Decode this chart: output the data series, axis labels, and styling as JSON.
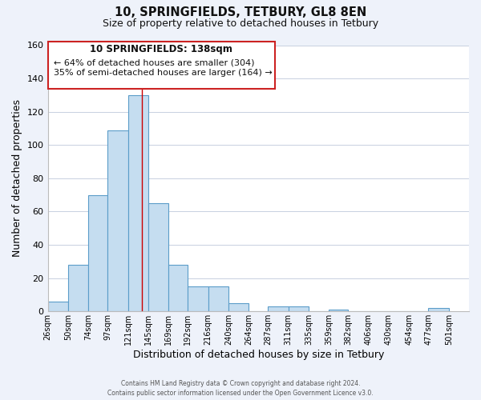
{
  "title": "10, SPRINGFIELDS, TETBURY, GL8 8EN",
  "subtitle": "Size of property relative to detached houses in Tetbury",
  "xlabel": "Distribution of detached houses by size in Tetbury",
  "ylabel": "Number of detached properties",
  "bar_left_edges": [
    26,
    50,
    74,
    97,
    121,
    145,
    169,
    192,
    216,
    240,
    264,
    287,
    311,
    335,
    359,
    382,
    406,
    430,
    454,
    477
  ],
  "bar_widths": [
    24,
    24,
    23,
    24,
    24,
    24,
    23,
    24,
    24,
    24,
    23,
    24,
    24,
    24,
    23,
    24,
    24,
    24,
    23,
    24
  ],
  "bar_heights": [
    6,
    28,
    70,
    109,
    130,
    65,
    28,
    15,
    15,
    5,
    0,
    3,
    3,
    0,
    1,
    0,
    0,
    0,
    0,
    2
  ],
  "tick_labels": [
    "26sqm",
    "50sqm",
    "74sqm",
    "97sqm",
    "121sqm",
    "145sqm",
    "169sqm",
    "192sqm",
    "216sqm",
    "240sqm",
    "264sqm",
    "287sqm",
    "311sqm",
    "335sqm",
    "359sqm",
    "382sqm",
    "406sqm",
    "430sqm",
    "454sqm",
    "477sqm",
    "501sqm"
  ],
  "tick_positions": [
    26,
    50,
    74,
    97,
    121,
    145,
    169,
    192,
    216,
    240,
    264,
    287,
    311,
    335,
    359,
    382,
    406,
    430,
    454,
    477,
    501
  ],
  "bar_color": "#c5ddf0",
  "bar_edge_color": "#5b9dc9",
  "marker_line_x": 138,
  "marker_line_color": "#cc0000",
  "ylim": [
    0,
    160
  ],
  "xlim": [
    26,
    525
  ],
  "yticks": [
    0,
    20,
    40,
    60,
    80,
    100,
    120,
    140,
    160
  ],
  "annotation_title": "10 SPRINGFIELDS: 138sqm",
  "annotation_line1": "← 64% of detached houses are smaller (304)",
  "annotation_line2": "35% of semi-detached houses are larger (164) →",
  "footer_line1": "Contains HM Land Registry data © Crown copyright and database right 2024.",
  "footer_line2": "Contains public sector information licensed under the Open Government Licence v3.0.",
  "background_color": "#eef2fa",
  "plot_bg_color": "#ffffff",
  "grid_color": "#c8d0e0"
}
